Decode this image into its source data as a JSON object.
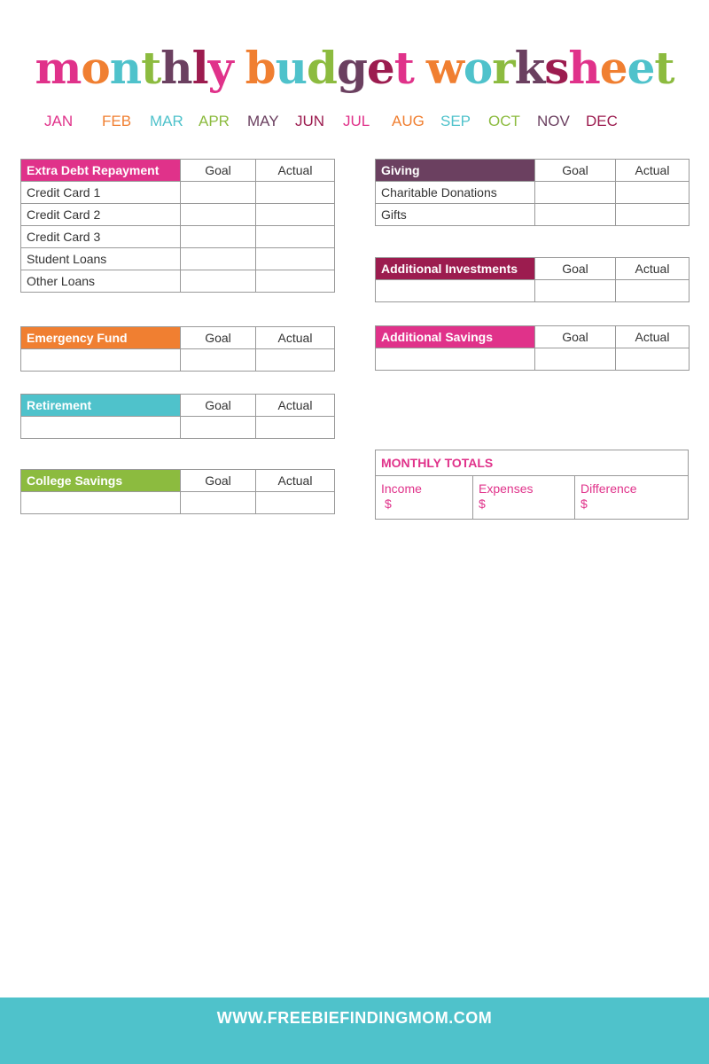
{
  "title": {
    "text": "monthly budget worksheet",
    "letter_colors": [
      "#e0328a",
      "#f07f31",
      "#4fc2cb",
      "#8cbb3f",
      "#6b4060",
      "#9c1c4f",
      "#e0328a",
      " ",
      "#f07f31",
      "#4fc2cb",
      "#8cbb3f",
      "#6b4060",
      "#9c1c4f",
      "#e0328a",
      " ",
      "#f07f31",
      "#4fc2cb",
      "#8cbb3f",
      "#6b4060",
      "#9c1c4f",
      "#e0328a",
      "#f07f31",
      "#4fc2cb",
      "#8cbb3f"
    ]
  },
  "colors": {
    "pink": "#e0328a",
    "orange": "#f07f31",
    "teal": "#4fc2cb",
    "green": "#8cbb3f",
    "purple": "#6b4060",
    "maroon": "#9c1c4f"
  },
  "months": [
    {
      "label": "JAN",
      "color": "#e0328a"
    },
    {
      "label": "FEB",
      "color": "#f07f31"
    },
    {
      "label": "MAR",
      "color": "#4fc2cb"
    },
    {
      "label": "APR",
      "color": "#8cbb3f"
    },
    {
      "label": "MAY",
      "color": "#6b4060"
    },
    {
      "label": "JUN",
      "color": "#9c1c4f"
    },
    {
      "label": "JUL",
      "color": "#e0328a"
    },
    {
      "label": "AUG",
      "color": "#f07f31"
    },
    {
      "label": "SEP",
      "color": "#4fc2cb"
    },
    {
      "label": "OCT",
      "color": "#8cbb3f"
    },
    {
      "label": "NOV",
      "color": "#6b4060"
    },
    {
      "label": "DEC",
      "color": "#9c1c4f"
    }
  ],
  "goal_label": "Goal",
  "actual_label": "Actual",
  "tables": [
    {
      "title": "Extra Debt Repayment",
      "color": "#e0328a",
      "rows": [
        "Credit Card 1",
        "Credit Card 2",
        "Credit Card 3",
        "Student Loans",
        "Other Loans"
      ]
    },
    {
      "title": "Emergency Fund",
      "color": "#f07f31",
      "rows": [
        ""
      ]
    },
    {
      "title": "Retirement",
      "color": "#4fc2cb",
      "rows": [
        ""
      ]
    },
    {
      "title": "College Savings",
      "color": "#8cbb3f",
      "rows": [
        ""
      ]
    },
    {
      "title": "Giving",
      "color": "#6b4060",
      "rows": [
        "Charitable Donations",
        "Gifts"
      ]
    },
    {
      "title": "Additional Investments",
      "color": "#9c1c4f",
      "rows": [
        ""
      ]
    },
    {
      "title": "Additional Savings",
      "color": "#e0328a",
      "rows": [
        ""
      ]
    }
  ],
  "totals": {
    "title": "MONTHLY TOTALS",
    "cells": [
      {
        "label": "Income",
        "value": "$"
      },
      {
        "label": "Expenses",
        "value": "$"
      },
      {
        "label": "Difference",
        "value": "$"
      }
    ]
  },
  "footer": {
    "url": "WWW.FREEBIEFINDINGMOM.COM"
  }
}
